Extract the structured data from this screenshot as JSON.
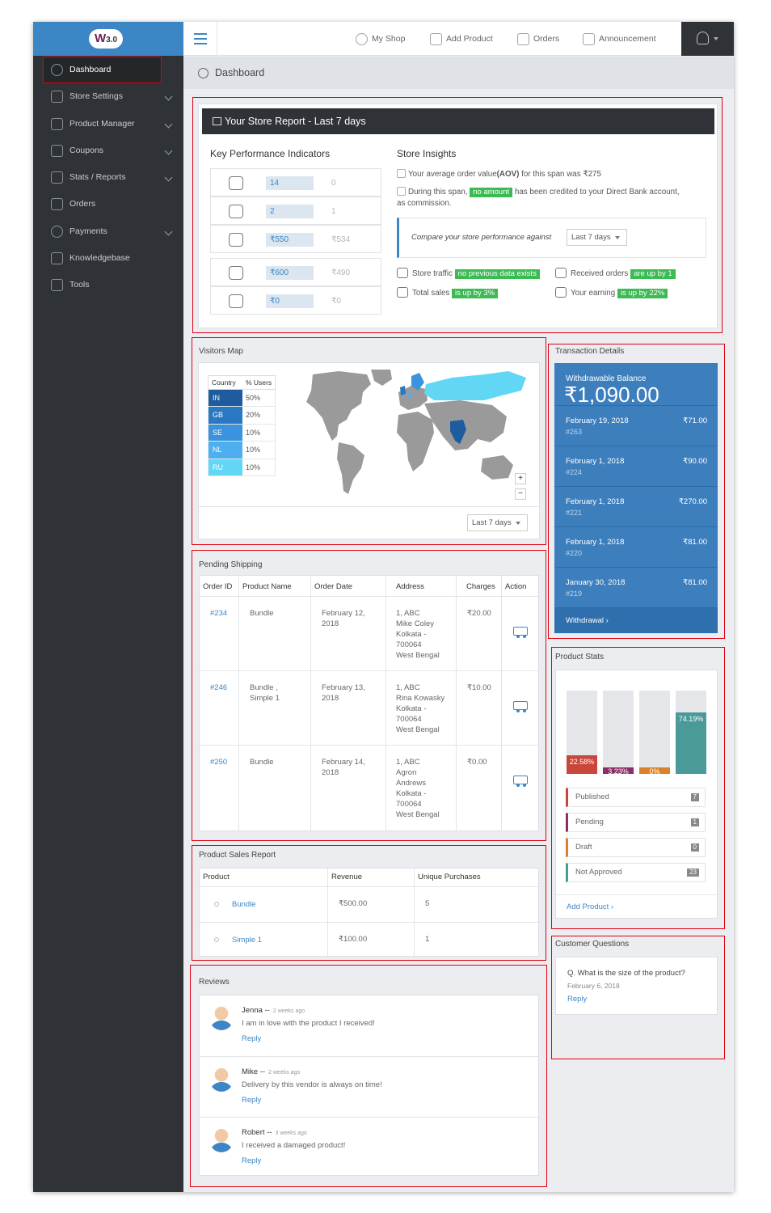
{
  "logo": {
    "text": "W",
    "version": "3.0"
  },
  "sidebar": {
    "items": [
      {
        "label": "Dashboard",
        "icon": "clock-icon"
      },
      {
        "label": "Store Settings",
        "icon": "gear-icon",
        "chevron": true
      },
      {
        "label": "Product Manager",
        "icon": "boxes-icon",
        "chevron": true
      },
      {
        "label": "Coupons",
        "icon": "tag-icon",
        "chevron": true
      },
      {
        "label": "Stats / Reports",
        "icon": "bar-chart-icon",
        "chevron": true
      },
      {
        "label": "Orders",
        "icon": "clipboard-icon"
      },
      {
        "label": "Payments",
        "icon": "dollar-icon",
        "chevron": true
      },
      {
        "label": "Knowledgebase",
        "icon": "graduation-cap-icon"
      },
      {
        "label": "Tools",
        "icon": "wrench-icon"
      }
    ]
  },
  "topbar": {
    "links": [
      "My Shop",
      "Add Product",
      "Orders",
      "Announcement"
    ]
  },
  "breadcrumb": {
    "title": "Dashboard"
  },
  "report": {
    "title": "Your Store Report - Last 7 days",
    "kpi_title": "Key Performance Indicators",
    "kpis": [
      {
        "value": "14",
        "prev": "0",
        "icon": "rocket-icon"
      },
      {
        "value": "2",
        "prev": "1",
        "icon": "cart-icon"
      },
      {
        "value": "₹550",
        "prev": "₹534",
        "icon": "money-bag-icon"
      },
      {
        "value": "₹600",
        "prev": "₹490",
        "icon": "piggy-bank-icon"
      },
      {
        "value": "₹0",
        "prev": "₹0",
        "icon": "cash-icon"
      }
    ],
    "insights_title": "Store Insights",
    "aov_text": "Your average order value",
    "aov_bold": "(AOV)",
    "aov_rest": " for this span was ₹275",
    "credit_pre": "During this span, ",
    "credit_badge": "no amount",
    "credit_post": " has been credited to your Direct Bank account,",
    "credit_post2": "as commission.",
    "compare_label": "Compare your store performance against",
    "compare_value": "Last 7 days",
    "stats": {
      "traffic_label": "Store traffic",
      "traffic_badge": "no previous data exists",
      "orders_label": "Received orders",
      "orders_badge": "are up by 1",
      "sales_label": "Total sales",
      "sales_badge": "is up by 3%",
      "earning_label": "Your earning",
      "earning_badge": "is up by 22%"
    }
  },
  "visitors": {
    "title": "Visitors Map",
    "headers": [
      "Country",
      "% Users"
    ],
    "rows": [
      {
        "country": "IN",
        "pct": "50%",
        "color": "#1e5c9e"
      },
      {
        "country": "GB",
        "pct": "20%",
        "color": "#2a77c2"
      },
      {
        "country": "SE",
        "pct": "10%",
        "color": "#3a93de"
      },
      {
        "country": "NL",
        "pct": "10%",
        "color": "#4dafef"
      },
      {
        "country": "RU",
        "pct": "10%",
        "color": "#62d7f5"
      }
    ],
    "zoom_in": "+",
    "zoom_out": "−",
    "range": "Last 7 days"
  },
  "transactions": {
    "title": "Transaction Details",
    "balance_label": "Withdrawable Balance",
    "balance": "₹1,090.00",
    "rows": [
      {
        "date": "February 19, 2018",
        "id": "#263",
        "amount": "₹71.00"
      },
      {
        "date": "February 1, 2018",
        "id": "#224",
        "amount": "₹90.00"
      },
      {
        "date": "February 1, 2018",
        "id": "#221",
        "amount": "₹270.00"
      },
      {
        "date": "February 1, 2018",
        "id": "#220",
        "amount": "₹81.00"
      },
      {
        "date": "January 30, 2018",
        "id": "#219",
        "amount": "₹81.00"
      }
    ],
    "withdrawal": "Withdrawal ›"
  },
  "shipping": {
    "title": "Pending Shipping",
    "headers": [
      "Order ID",
      "Product Name",
      "Order Date",
      "Address",
      "Charges",
      "Action"
    ],
    "rows": [
      {
        "id": "#234",
        "product": [
          "Bundle"
        ],
        "date": [
          "February 12,",
          "2018"
        ],
        "address": [
          "1, ABC",
          "Mike Coley",
          "Kolkata -",
          "700064",
          "West Bengal"
        ],
        "charges": "₹20.00"
      },
      {
        "id": "#246",
        "product": [
          "Bundle ,",
          "Simple 1"
        ],
        "date": [
          "February 13,",
          "2018"
        ],
        "address": [
          "1, ABC",
          "Rina Kowasky",
          "Kolkata -",
          "700064",
          "West Bengal"
        ],
        "charges": "₹10.00"
      },
      {
        "id": "#250",
        "product": [
          "Bundle"
        ],
        "date": [
          "February 14,",
          "2018"
        ],
        "address": [
          "1, ABC",
          "Agron",
          "Andrews",
          "Kolkata -",
          "700064",
          "West Bengal"
        ],
        "charges": "₹0.00"
      }
    ]
  },
  "product_stats": {
    "title": "Product Stats",
    "bars": [
      {
        "pct": 22.58,
        "label": "22.58%",
        "color": "#c9473a"
      },
      {
        "pct": 3.23,
        "label": "3.23%",
        "color": "#8b2e63"
      },
      {
        "pct": 0,
        "label": "0%",
        "color": "#d9822b"
      },
      {
        "pct": 74.19,
        "label": "74.19%",
        "color": "#4a9a9a"
      }
    ],
    "statuses": [
      {
        "label": "Published",
        "count": "7",
        "color": "#c9473a"
      },
      {
        "label": "Pending",
        "count": "1",
        "color": "#8b2e63"
      },
      {
        "label": "Draft",
        "count": "0",
        "color": "#d9822b"
      },
      {
        "label": "Not Approved",
        "count": "23",
        "color": "#4a9a9a"
      }
    ],
    "add_product": "Add Product ›"
  },
  "sales": {
    "title": "Product Sales Report",
    "headers": [
      "Product",
      "Revenue",
      "Unique Purchases"
    ],
    "rows": [
      {
        "product": "Bundle",
        "revenue": "₹500.00",
        "purchases": "5"
      },
      {
        "product": "Simple 1",
        "revenue": "₹100.00",
        "purchases": "1"
      }
    ]
  },
  "questions": {
    "title": "Customer Questions",
    "q": "Q.  What is the size of the product?",
    "date": "February 6, 2018",
    "reply": "Reply"
  },
  "reviews": {
    "title": "Reviews",
    "items": [
      {
        "name": "Jenna --",
        "ago": "2 weeks ago",
        "text": "I am in love with the product I received!",
        "reply": "Reply"
      },
      {
        "name": "Mike --",
        "ago": "2 weeks ago",
        "text": "Delivery by this vendor is always on time!",
        "reply": "Reply"
      },
      {
        "name": "Robert --",
        "ago": "3 weeks ago",
        "text": "I received a damaged product!",
        "reply": "Reply"
      }
    ]
  }
}
